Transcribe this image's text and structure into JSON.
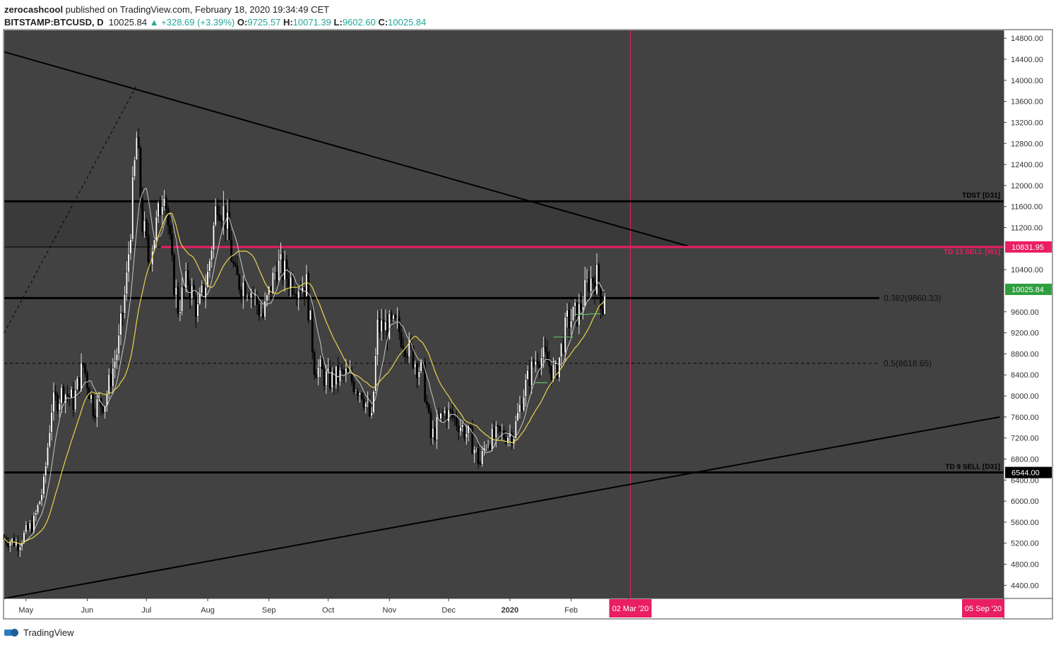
{
  "header": {
    "author": "zerocashcool",
    "published_text": "published on TradingView.com, February 18, 2020 19:34:49 CET",
    "symbol": "BITSTAMP:BTCUSD, D",
    "last_price": "10025.84",
    "change": "▲ +328.69 (+3.39%)",
    "open_label": "O:",
    "open": "9725.57",
    "high_label": "H:",
    "high": "10071.39",
    "low_label": "L:",
    "low": "9602.60",
    "close_label": "C:",
    "close": "10025.84"
  },
  "footer": {
    "brand": "TradingView"
  },
  "colors": {
    "background": "#424242",
    "bull_candle": "#ffffff",
    "bear_candle": "#000000",
    "ma_fast": "#c8c8c8",
    "ma_slow": "#e8d44d",
    "td_line": "#e91e63",
    "price_tag": "#2e9e3e",
    "td_setup": "#66bb6a"
  },
  "chart_data": {
    "type": "candlestick",
    "title": "BITSTAMP:BTCUSD, D",
    "y_axis": {
      "ticks": [
        "14800.00",
        "14400.00",
        "14000.00",
        "13600.00",
        "13200.00",
        "12800.00",
        "12400.00",
        "12000.00",
        "11600.00",
        "11200.00",
        "10400.00",
        "9600.00",
        "9200.00",
        "8800.00",
        "8400.00",
        "8000.00",
        "7600.00",
        "7200.00",
        "6800.00",
        "6400.00",
        "6000.00",
        "5600.00",
        "5200.00",
        "4800.00",
        "4400.00"
      ],
      "ylim": [
        4150,
        14950
      ]
    },
    "x_axis": {
      "ticks": [
        "May",
        "Jun",
        "Jul",
        "Aug",
        "Sep",
        "Oct",
        "Nov",
        "Dec",
        "2020",
        "Feb",
        "Ma"
      ],
      "start": "2019-04-20",
      "end": "2020-09-07"
    },
    "price_tags": [
      {
        "text": "10831.95",
        "value": 10831.95,
        "color": "#e91e63"
      },
      {
        "text": "10025.84",
        "value": 10025.84,
        "color": "#2e9e3e"
      },
      {
        "text": "6544.00",
        "value": 6544.0,
        "color": "#000000"
      }
    ],
    "date_tags": [
      {
        "text": "02 Mar '20",
        "date": "2020-03-02"
      },
      {
        "text": "05 Sep '20",
        "date": "2020-09-05"
      }
    ],
    "horizontal_levels": [
      {
        "value": 11700,
        "label": "TDST [D31]",
        "style": "solid-thick",
        "color": "#000000"
      },
      {
        "value": 10831.95,
        "label": "TD 13 SELL [W1]",
        "style": "solid",
        "color": "#e91e63"
      },
      {
        "value": 9860.33,
        "label": "0.382(9860.33)",
        "style": "solid-thick",
        "color": "#000000"
      },
      {
        "value": 8618.65,
        "label": "0.5(8618.65)",
        "style": "dashed",
        "color": "#000000"
      },
      {
        "value": 6544.0,
        "label": "TD 9 SELL [D31]",
        "style": "solid-thick",
        "color": "#000000"
      }
    ],
    "resistance_band": {
      "from": 10831.95,
      "to": 11700
    },
    "trendlines": [
      {
        "name": "descending",
        "from": {
          "date": "2019-04-20",
          "value": 14540
        },
        "to": {
          "date": "2020-03-31",
          "value": 10850
        }
      },
      {
        "name": "ascending",
        "from": {
          "date": "2019-04-20",
          "value": 4150
        },
        "to": {
          "date": "2020-09-05",
          "value": 7600
        }
      },
      {
        "name": "dashed-measure",
        "from": {
          "date": "2019-04-20",
          "value": 9200
        },
        "to": {
          "date": "2019-06-26",
          "value": 13900
        }
      }
    ],
    "vertical_marker": {
      "date": "2020-03-02",
      "color": "#e91e63"
    },
    "anchors": [
      {
        "date": "2019-04-20",
        "value": 5300
      },
      {
        "date": "2019-04-27",
        "value": 5200
      },
      {
        "date": "2019-05-05",
        "value": 5600
      },
      {
        "date": "2019-05-10",
        "value": 6300
      },
      {
        "date": "2019-05-14",
        "value": 7800
      },
      {
        "date": "2019-05-20",
        "value": 8100
      },
      {
        "date": "2019-05-25",
        "value": 7900
      },
      {
        "date": "2019-05-30",
        "value": 8600
      },
      {
        "date": "2019-06-04",
        "value": 7800
      },
      {
        "date": "2019-06-10",
        "value": 7900
      },
      {
        "date": "2019-06-17",
        "value": 9000
      },
      {
        "date": "2019-06-21",
        "value": 10200
      },
      {
        "date": "2019-06-26",
        "value": 12900
      },
      {
        "date": "2019-06-29",
        "value": 11300
      },
      {
        "date": "2019-07-02",
        "value": 10600
      },
      {
        "date": "2019-07-07",
        "value": 11400
      },
      {
        "date": "2019-07-10",
        "value": 12100
      },
      {
        "date": "2019-07-14",
        "value": 10400
      },
      {
        "date": "2019-07-17",
        "value": 9700
      },
      {
        "date": "2019-07-22",
        "value": 10200
      },
      {
        "date": "2019-07-27",
        "value": 9600
      },
      {
        "date": "2019-08-01",
        "value": 10300
      },
      {
        "date": "2019-08-06",
        "value": 11800
      },
      {
        "date": "2019-08-10",
        "value": 11400
      },
      {
        "date": "2019-08-15",
        "value": 10200
      },
      {
        "date": "2019-08-22",
        "value": 10100
      },
      {
        "date": "2019-08-29",
        "value": 9500
      },
      {
        "date": "2019-09-05",
        "value": 10500
      },
      {
        "date": "2019-09-12",
        "value": 10200
      },
      {
        "date": "2019-09-20",
        "value": 10100
      },
      {
        "date": "2019-09-24",
        "value": 8600
      },
      {
        "date": "2019-10-01",
        "value": 8300
      },
      {
        "date": "2019-10-10",
        "value": 8400
      },
      {
        "date": "2019-10-18",
        "value": 8100
      },
      {
        "date": "2019-10-23",
        "value": 7500
      },
      {
        "date": "2019-10-26",
        "value": 9300
      },
      {
        "date": "2019-11-05",
        "value": 9300
      },
      {
        "date": "2019-11-12",
        "value": 8800
      },
      {
        "date": "2019-11-18",
        "value": 8400
      },
      {
        "date": "2019-11-22",
        "value": 7200
      },
      {
        "date": "2019-11-29",
        "value": 7700
      },
      {
        "date": "2019-12-06",
        "value": 7500
      },
      {
        "date": "2019-12-12",
        "value": 7200
      },
      {
        "date": "2019-12-17",
        "value": 6700
      },
      {
        "date": "2019-12-20",
        "value": 7150
      },
      {
        "date": "2019-12-27",
        "value": 7250
      },
      {
        "date": "2020-01-03",
        "value": 7300
      },
      {
        "date": "2020-01-08",
        "value": 8100
      },
      {
        "date": "2020-01-15",
        "value": 8800
      },
      {
        "date": "2020-01-20",
        "value": 8650
      },
      {
        "date": "2020-01-24",
        "value": 8400
      },
      {
        "date": "2020-01-30",
        "value": 9400
      },
      {
        "date": "2020-02-05",
        "value": 9600
      },
      {
        "date": "2020-02-10",
        "value": 10200
      },
      {
        "date": "2020-02-14",
        "value": 10250
      },
      {
        "date": "2020-02-16",
        "value": 9900
      },
      {
        "date": "2020-02-17",
        "value": 9700
      },
      {
        "date": "2020-02-18",
        "value": 10025.84
      }
    ]
  }
}
